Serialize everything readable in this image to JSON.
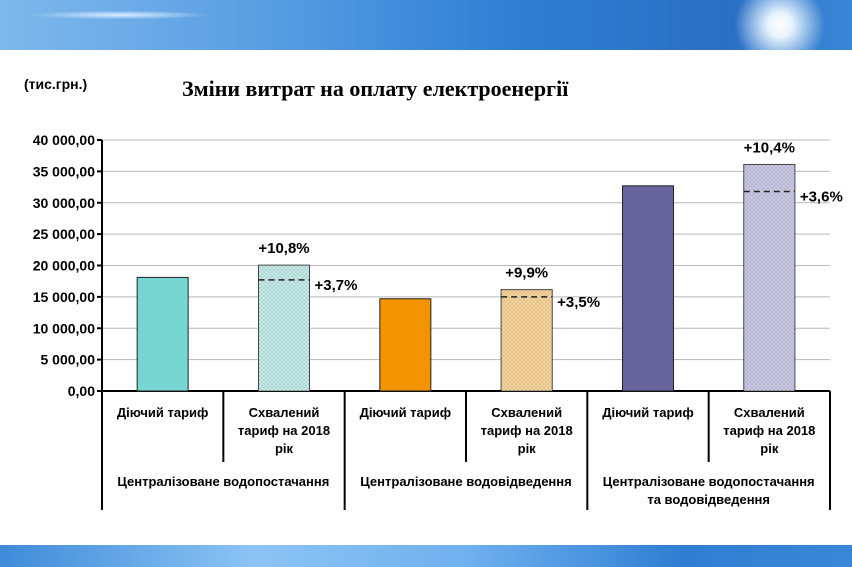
{
  "chart_data": {
    "type": "bar",
    "title": "Зміни витрат на оплату електроенергії",
    "ylabel": "(тис.грн.)",
    "xlabel": "",
    "ylim": [
      0,
      40000
    ],
    "yticks": [
      "0,00",
      "5 000,00",
      "10 000,00",
      "15 000,00",
      "20 000,00",
      "25 000,00",
      "30 000,00",
      "35 000,00",
      "40 000,00"
    ],
    "grid": true,
    "categories": [
      "Діючий тариф",
      "Схвалений тариф на 2018 рік",
      "Діючий тариф",
      "Схвалений тариф на 2018 рік",
      "Діючий тариф",
      "Схвалений тариф на 2018 рік"
    ],
    "category_lines": [
      [
        "Діючий тариф"
      ],
      [
        "Схвалений",
        "тариф на 2018",
        "рік"
      ],
      [
        "Діючий тариф"
      ],
      [
        "Схвалений",
        "тариф на 2018",
        "рік"
      ],
      [
        "Діючий тариф"
      ],
      [
        "Схвалений",
        "тариф на 2018",
        "рік"
      ]
    ],
    "groups": [
      {
        "lines": [
          "Централізоване водопостачання"
        ]
      },
      {
        "lines": [
          "Централізоване водовідведення"
        ]
      },
      {
        "lines": [
          "Централізоване водопостачання",
          "та водовідведення"
        ]
      }
    ],
    "values": [
      18100,
      20050,
      14700,
      16150,
      32700,
      36100
    ],
    "reference_lines": [
      null,
      17700,
      null,
      15000,
      null,
      31800
    ],
    "top_labels": [
      null,
      "+10,8%",
      null,
      "+9,9%",
      null,
      "+10,4%"
    ],
    "side_labels": [
      null,
      "+3,7%",
      null,
      "+3,5%",
      null,
      "+3,6%"
    ],
    "colors": [
      "#76d7d2",
      "#a9e8e4",
      "#f29300",
      "#fbc56a",
      "#67659c",
      "#b3b2dc"
    ],
    "hatched": [
      false,
      true,
      false,
      true,
      false,
      true
    ]
  }
}
